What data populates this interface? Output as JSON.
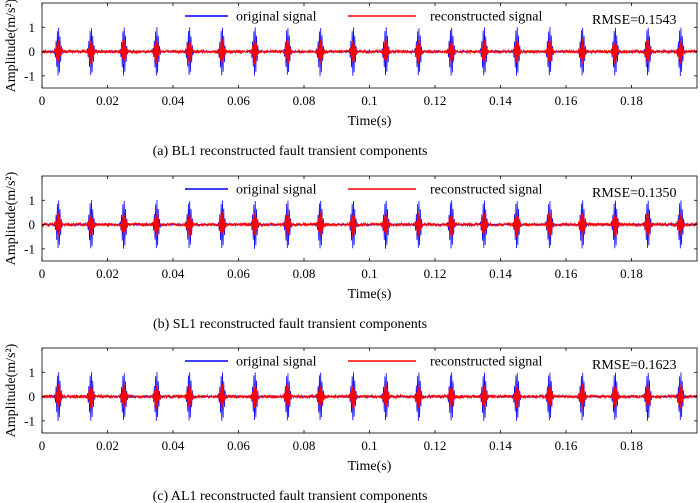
{
  "chart_data": [
    {
      "type": "line",
      "caption": "(a) BL1 reconstructed fault transient components",
      "xlabel": "Time(s)",
      "ylabel": "Amplitude(m/s²)",
      "xlim": [
        0,
        0.2
      ],
      "ylim": [
        -1.5,
        2
      ],
      "x_ticks": [
        "0",
        "0.02",
        "0.04",
        "0.06",
        "0.08",
        "0.1",
        "0.12",
        "0.14",
        "0.16",
        "0.18"
      ],
      "y_ticks": [
        "-1",
        "0",
        "1"
      ],
      "annotation": "RMSE=0.1543",
      "legend_position": "top-center",
      "series": [
        {
          "name": "original signal",
          "color": "#0000ff",
          "peak_amplitude": 1.0,
          "impulse_times": [
            0.005,
            0.015,
            0.025,
            0.035,
            0.045,
            0.055,
            0.065,
            0.075,
            0.085,
            0.095,
            0.105,
            0.115,
            0.125,
            0.135,
            0.145,
            0.155,
            0.165,
            0.175,
            0.185,
            0.195
          ]
        },
        {
          "name": "reconstructed signal",
          "color": "#ff0000",
          "peak_amplitude": 0.6,
          "impulse_times": [
            0.005,
            0.015,
            0.025,
            0.035,
            0.045,
            0.055,
            0.065,
            0.075,
            0.085,
            0.095,
            0.105,
            0.115,
            0.125,
            0.135,
            0.145,
            0.155,
            0.165,
            0.175,
            0.185,
            0.195
          ]
        }
      ]
    },
    {
      "type": "line",
      "caption": "(b) SL1 reconstructed fault transient components",
      "xlabel": "Time(s)",
      "ylabel": "Amplitude(m/s²)",
      "xlim": [
        0,
        0.2
      ],
      "ylim": [
        -1.5,
        2
      ],
      "x_ticks": [
        "0",
        "0.02",
        "0.04",
        "0.06",
        "0.08",
        "0.1",
        "0.12",
        "0.14",
        "0.16",
        "0.18"
      ],
      "y_ticks": [
        "-1",
        "0",
        "1"
      ],
      "annotation": "RMSE=0.1350",
      "legend_position": "top-center",
      "series": [
        {
          "name": "original signal",
          "color": "#0000ff",
          "peak_amplitude": 1.0,
          "impulse_times": [
            0.005,
            0.015,
            0.025,
            0.035,
            0.045,
            0.055,
            0.065,
            0.075,
            0.085,
            0.095,
            0.105,
            0.115,
            0.125,
            0.135,
            0.145,
            0.155,
            0.165,
            0.175,
            0.185,
            0.195
          ]
        },
        {
          "name": "reconstructed signal",
          "color": "#ff0000",
          "peak_amplitude": 0.6,
          "impulse_times": [
            0.005,
            0.015,
            0.025,
            0.035,
            0.045,
            0.055,
            0.065,
            0.075,
            0.085,
            0.095,
            0.105,
            0.115,
            0.125,
            0.135,
            0.145,
            0.155,
            0.165,
            0.175,
            0.185,
            0.195
          ]
        }
      ]
    },
    {
      "type": "line",
      "caption": "(c) AL1 reconstructed fault transient components",
      "xlabel": "Time(s)",
      "ylabel": "Amplitude(m/s²)",
      "xlim": [
        0,
        0.2
      ],
      "ylim": [
        -1.5,
        2
      ],
      "x_ticks": [
        "0",
        "0.02",
        "0.04",
        "0.06",
        "0.08",
        "0.1",
        "0.12",
        "0.14",
        "0.16",
        "0.18"
      ],
      "y_ticks": [
        "-1",
        "0",
        "1"
      ],
      "annotation": "RMSE=0.1623",
      "legend_position": "top-center",
      "series": [
        {
          "name": "original signal",
          "color": "#0000ff",
          "peak_amplitude": 1.0,
          "impulse_times": [
            0.005,
            0.015,
            0.025,
            0.035,
            0.045,
            0.055,
            0.065,
            0.075,
            0.085,
            0.095,
            0.105,
            0.115,
            0.125,
            0.135,
            0.145,
            0.155,
            0.165,
            0.175,
            0.185,
            0.195
          ]
        },
        {
          "name": "reconstructed signal",
          "color": "#ff0000",
          "peak_amplitude": 0.6,
          "impulse_times": [
            0.005,
            0.015,
            0.025,
            0.035,
            0.045,
            0.055,
            0.065,
            0.075,
            0.085,
            0.095,
            0.105,
            0.115,
            0.125,
            0.135,
            0.145,
            0.155,
            0.165,
            0.175,
            0.185,
            0.195
          ]
        }
      ]
    }
  ]
}
